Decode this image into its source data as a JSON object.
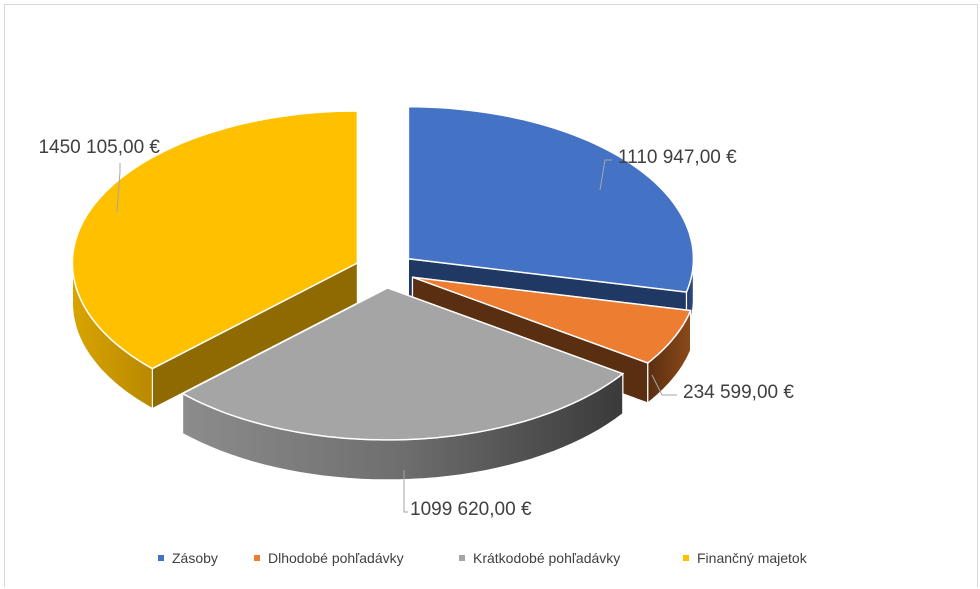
{
  "chart_data": {
    "type": "pie",
    "style": "3d-exploded",
    "categories": [
      "Zásoby",
      "Dlhobodé pohľadávky",
      "Krátkodobé pohľadávky",
      "Finančný majetok"
    ],
    "values": [
      1110947.0,
      234599.0,
      1099620.0,
      1450105.0
    ],
    "data_labels": [
      "1110 947,00 €",
      "234 599,00 €",
      "1099 620,00 €",
      "1450 105,00 €"
    ],
    "colors": [
      "#4472C4",
      "#ED7D31",
      "#A5A5A5",
      "#FFC000"
    ],
    "legend": {
      "position": "bottom",
      "entries": [
        "Zásoby",
        "Dlhodobé pohľadávky",
        "Krátkodobé pohľadávky",
        "Finančný majetok"
      ]
    },
    "title": ""
  }
}
